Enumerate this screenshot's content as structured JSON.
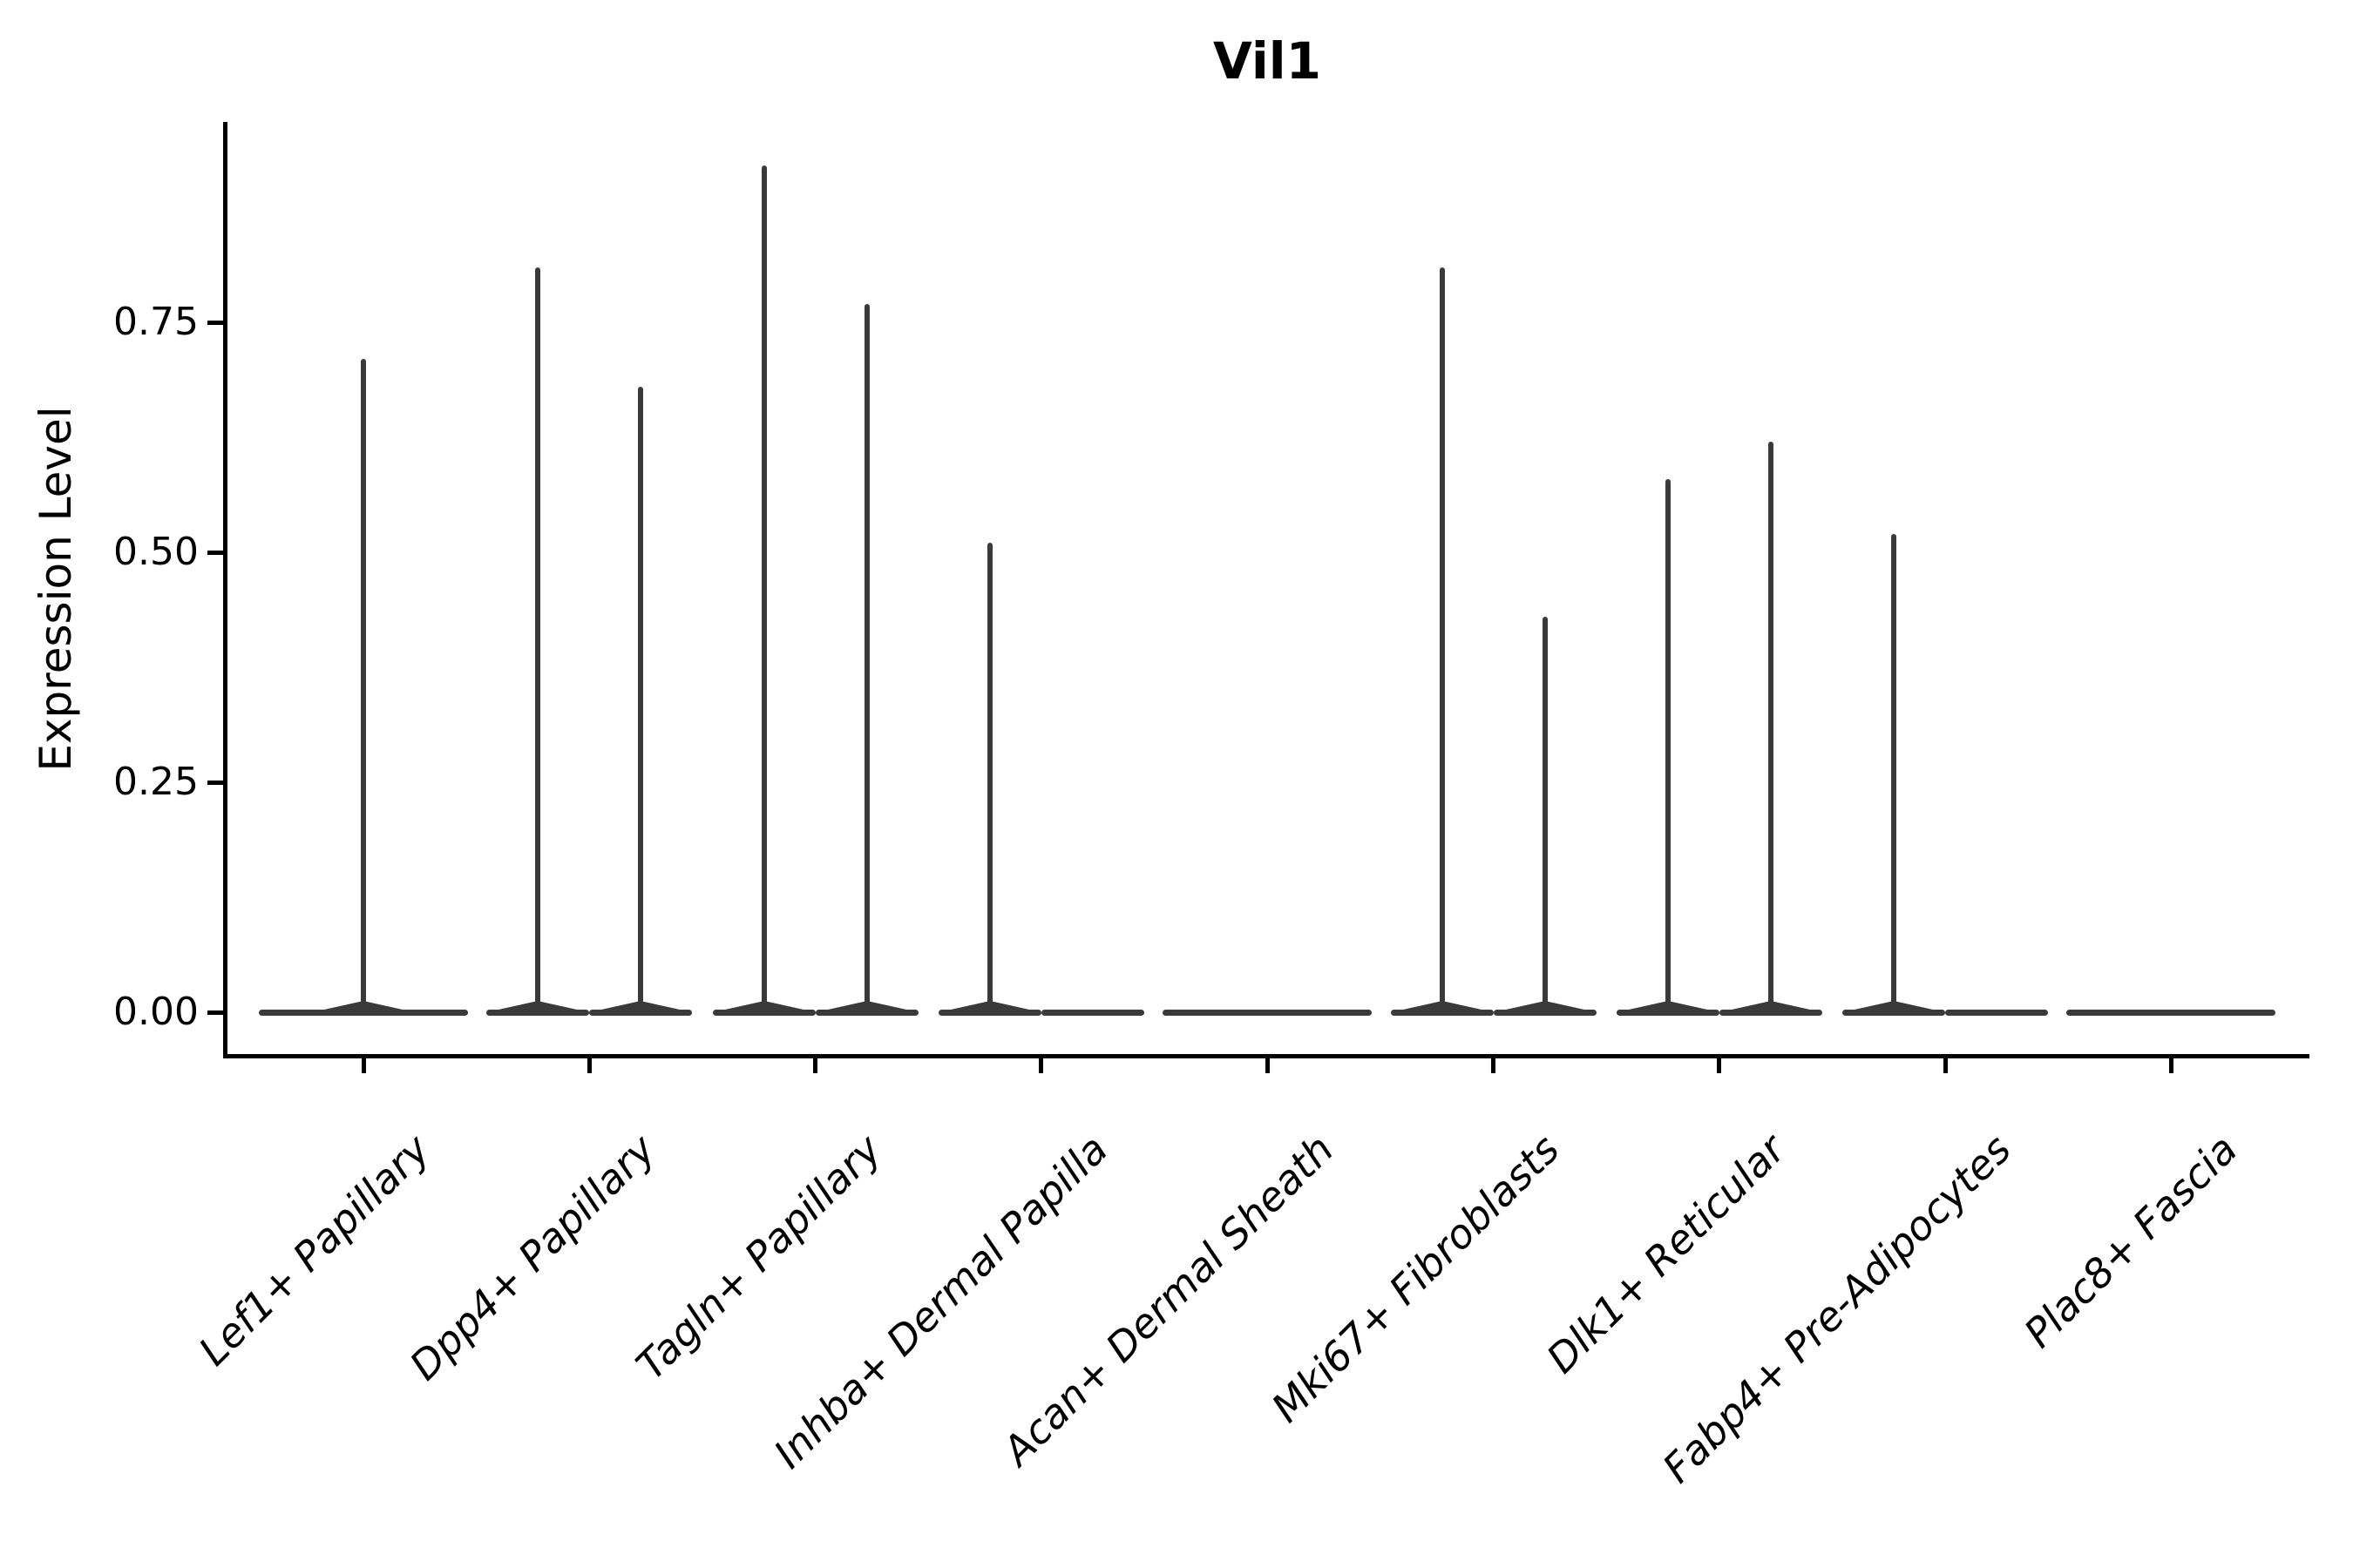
{
  "chart_data": {
    "type": "violin",
    "title": "Vil1",
    "ylabel": "Expression Level",
    "ylim": [
      0,
      0.97
    ],
    "grid": false,
    "legend": false,
    "yticks": [
      {
        "label": "0.00",
        "value": 0.0
      },
      {
        "label": "0.25",
        "value": 0.25
      },
      {
        "label": "0.50",
        "value": 0.5
      },
      {
        "label": "0.75",
        "value": 0.75
      }
    ],
    "categories": [
      "Lef1+ Papillary",
      "Dpp4+ Papillary",
      "Tagln+ Papillary",
      "Inhba+ Dermal Papilla",
      "Acan+ Dermal Sheath",
      "Mki67+ Fibroblasts",
      "Dlk1+ Reticular",
      "Fabp4+ Pre-Adipocytes",
      "Plac8+ Fascia"
    ],
    "violins": [
      {
        "category": "Lef1+ Papillary",
        "parts": [
          {
            "pos": "full",
            "max": 0.71
          }
        ]
      },
      {
        "category": "Dpp4+ Papillary",
        "parts": [
          {
            "pos": "left",
            "max": 0.81
          },
          {
            "pos": "right",
            "max": 0.68
          }
        ]
      },
      {
        "category": "Tagln+ Papillary",
        "parts": [
          {
            "pos": "left",
            "max": 0.92
          },
          {
            "pos": "right",
            "max": 0.77
          }
        ]
      },
      {
        "category": "Inhba+ Dermal Papilla",
        "parts": [
          {
            "pos": "left",
            "max": 0.51
          },
          {
            "pos": "right",
            "max": 0.0
          }
        ]
      },
      {
        "category": "Acan+ Dermal Sheath",
        "parts": [
          {
            "pos": "full",
            "max": 0.0
          }
        ]
      },
      {
        "category": "Mki67+ Fibroblasts",
        "parts": [
          {
            "pos": "left",
            "max": 0.81
          },
          {
            "pos": "right",
            "max": 0.43
          }
        ]
      },
      {
        "category": "Dlk1+ Reticular",
        "parts": [
          {
            "pos": "left",
            "max": 0.58
          },
          {
            "pos": "right",
            "max": 0.62
          }
        ]
      },
      {
        "category": "Fabp4+ Pre-Adipocytes",
        "parts": [
          {
            "pos": "left",
            "max": 0.52
          },
          {
            "pos": "right",
            "max": 0.0
          }
        ]
      },
      {
        "category": "Plac8+ Fascia",
        "parts": [
          {
            "pos": "full",
            "max": 0.0
          }
        ]
      }
    ],
    "colors": {
      "violin": "#3a3a3a",
      "axis": "#000000",
      "text": "#000000",
      "background": "#ffffff"
    }
  }
}
